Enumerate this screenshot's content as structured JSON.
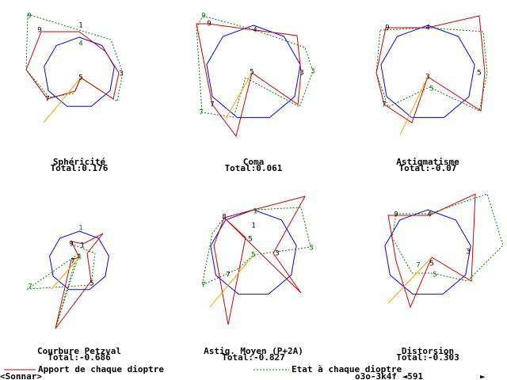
{
  "panels": [
    {
      "title": "Sphéricité",
      "total": "Total:0.176",
      "labels": [
        "9",
        "1",
        "4",
        "5",
        "3",
        "7",
        "9"
      ]
    },
    {
      "title": "Coma",
      "total": "Total:0.061",
      "labels": [
        "9",
        "4",
        "5",
        "3",
        "7",
        "7",
        "3",
        "9"
      ]
    },
    {
      "title": "Astigmatisme",
      "total": "Total:-0.07",
      "labels": [
        "9",
        "4",
        "5",
        "3",
        "7",
        "5"
      ]
    },
    {
      "title": "Courbure Petzval",
      "total": "Total:-0.686",
      "labels": [
        "1",
        "9",
        "1",
        "7",
        "4",
        "5",
        "7"
      ]
    },
    {
      "title": "Astig. Moyen (P+2A)",
      "total": "Total:-0.827",
      "labels": [
        "8",
        "1",
        "1",
        "5",
        "5",
        "3",
        "7",
        "7",
        "3"
      ]
    },
    {
      "title": "Distorsion",
      "total": "Total:-0.303",
      "labels": [
        "9",
        "4",
        "3",
        "5",
        "5",
        "7"
      ]
    }
  ],
  "legend": {
    "contribution": "Apport de chaque dioptre",
    "state": "Etat à chaque dioptre"
  },
  "footer": {
    "lens": "<Sonnar>",
    "code": "o3o-3k4f ◄591",
    "arrow": "►"
  }
}
